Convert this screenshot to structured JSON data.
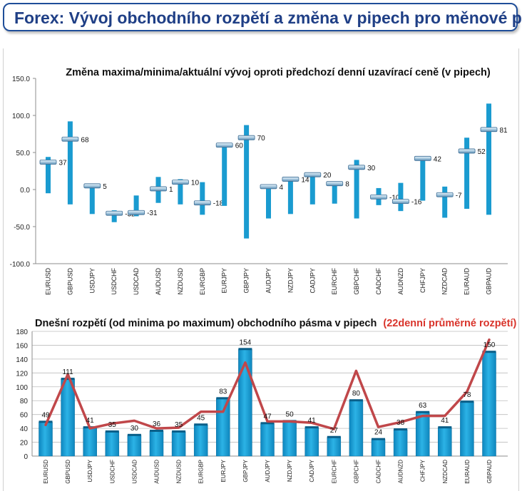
{
  "page": {
    "title": "Forex: Vývoj obchodního rozpětí a změna v pipech pro měnové páry"
  },
  "chart_data": [
    {
      "type": "floating-bar",
      "title": "Změna maxima/minima/aktuální vývoj oproti předchozí denní uzavírací ceně (v pipech)",
      "ylim": [
        -100,
        150
      ],
      "yticks": [
        "150.0",
        "100.0",
        "50.0",
        "0.0",
        "-50.0",
        "-100.0"
      ],
      "grid": false,
      "bar_color": "#1a9bd0",
      "categories": [
        "EURUSD",
        "GBPUSD",
        "USDJPY",
        "USDCHF",
        "USDCAD",
        "AUDUSD",
        "NZDUSD",
        "EURGBP",
        "EURJPY",
        "GBPJPY",
        "AUDJPY",
        "NZDJPY",
        "CADJPY",
        "EURCHF",
        "GBPCHF",
        "CADCHF",
        "AUDNZD",
        "CHFJPY",
        "NZDCAD",
        "EURAUD",
        "GBPAUD"
      ],
      "high": [
        44,
        92,
        8,
        -28,
        -8,
        17,
        14,
        10,
        62,
        87,
        6,
        17,
        22,
        11,
        40,
        2,
        9,
        45,
        4,
        70,
        116
      ],
      "low": [
        -5,
        -20,
        -33,
        -44,
        -36,
        -18,
        -20,
        -34,
        -22,
        -66,
        -39,
        -33,
        -20,
        -19,
        -39,
        -21,
        -29,
        -15,
        -38,
        -26,
        -34
      ],
      "current": [
        37,
        68,
        5,
        -32,
        -31,
        1,
        10,
        -18,
        60,
        70,
        4,
        14,
        20,
        8,
        30,
        -10,
        -16,
        42,
        -7,
        52,
        81
      ],
      "labels": [
        "37",
        "68",
        "5",
        "-32",
        "-31",
        "1",
        "10",
        "-18",
        "60",
        "70",
        "4",
        "14",
        "20",
        "8",
        "30",
        "-10",
        "-16",
        "42",
        "-7",
        "52",
        "81"
      ]
    },
    {
      "type": "bar+line",
      "title": "Dnešní rozpětí (od minima po maximum) obchodního pásma v pipech",
      "title_suffix": "(22denní průměrné rozpětí)",
      "ylim": [
        0,
        180
      ],
      "yticks": [
        "180",
        "160",
        "140",
        "120",
        "100",
        "80",
        "60",
        "40",
        "20",
        "0"
      ],
      "grid": true,
      "bar_color": "#1a9bd0",
      "line_color": "#c0474a",
      "categories": [
        "EURUSD",
        "GBPUSD",
        "USDJPY",
        "USDCHF",
        "USDCAD",
        "AUDUSD",
        "NZDUSD",
        "EURGBP",
        "EURJPY",
        "GBPJPY",
        "AUDJPY",
        "NZDJPY",
        "CADJPY",
        "EURCHF",
        "GBPCHF",
        "CADCHF",
        "AUDNZD",
        "CHFJPY",
        "NZDCAD",
        "EURAUD",
        "GBPAUD"
      ],
      "values": [
        49,
        111,
        41,
        35,
        30,
        36,
        35,
        45,
        83,
        154,
        47,
        50,
        41,
        27,
        80,
        24,
        38,
        63,
        41,
        78,
        150
      ],
      "labels": [
        "49",
        "111",
        "41",
        "35",
        "30",
        "36",
        "35",
        "45",
        "83",
        "154",
        "47",
        "50",
        "41",
        "27",
        "80",
        "24",
        "38",
        "63",
        "41",
        "78",
        "150"
      ],
      "average": [
        45,
        118,
        40,
        47,
        51,
        40,
        41,
        64,
        64,
        135,
        50,
        50,
        48,
        39,
        123,
        42,
        49,
        58,
        58,
        93,
        168
      ]
    }
  ]
}
